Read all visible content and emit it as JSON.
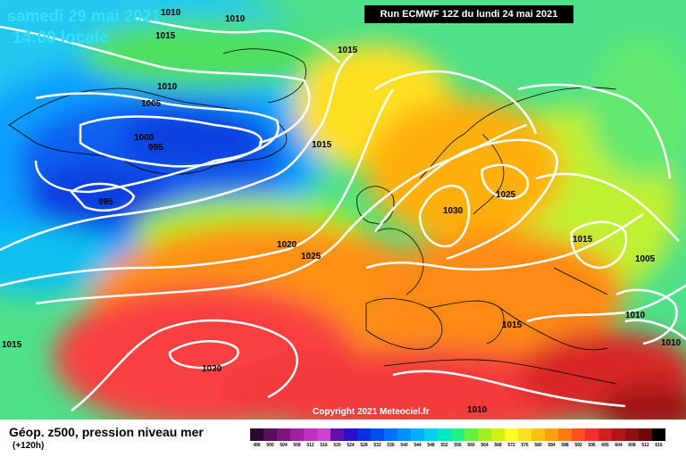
{
  "header": {
    "date_line": "samedi 29 mai 2021",
    "time_line": "14:00 locale",
    "run_label": "Run ECMWF 12Z du lundi 24 mai 2021"
  },
  "copyright": "Copyright 2021 Meteociel.fr",
  "footer": {
    "title": "Géop. z500, pression niveau mer",
    "subtitle": "(+120h)"
  },
  "legend": {
    "values": [
      "496",
      "500",
      "504",
      "508",
      "512",
      "516",
      "520",
      "524",
      "528",
      "532",
      "536",
      "540",
      "544",
      "548",
      "552",
      "556",
      "560",
      "564",
      "568",
      "572",
      "576",
      "580",
      "584",
      "588",
      "592",
      "596",
      "600",
      "604",
      "608",
      "612",
      "616"
    ],
    "colors": [
      "#2b0a2b",
      "#5a0f5a",
      "#7d147d",
      "#a020a0",
      "#c030c0",
      "#d040d0",
      "#6010b0",
      "#2a10c8",
      "#0a30e0",
      "#0050f0",
      "#0070ff",
      "#0090ff",
      "#00b0ff",
      "#00d0f0",
      "#00e8c0",
      "#20f080",
      "#60f040",
      "#a0f020",
      "#d0f010",
      "#ffff20",
      "#ffe020",
      "#ffc010",
      "#ffa010",
      "#ff7a10",
      "#ff5020",
      "#f03030",
      "#d02020",
      "#b01818",
      "#901010",
      "#700808",
      "#000000"
    ]
  },
  "isobar_labels": [
    {
      "text": "1010"
    },
    {
      "text": "1010"
    },
    {
      "text": "1015"
    },
    {
      "text": "1015"
    },
    {
      "text": "1010"
    },
    {
      "text": "1005"
    },
    {
      "text": "1000"
    },
    {
      "text": "995"
    },
    {
      "text": "995"
    },
    {
      "text": "1015"
    },
    {
      "text": "1025"
    },
    {
      "text": "1030"
    },
    {
      "text": "1020"
    },
    {
      "text": "1025"
    },
    {
      "text": "1015"
    },
    {
      "text": "1005"
    },
    {
      "text": "1015"
    },
    {
      "text": "1010"
    },
    {
      "text": "1015"
    },
    {
      "text": "1010"
    },
    {
      "text": "1030"
    },
    {
      "text": "1010"
    }
  ]
}
